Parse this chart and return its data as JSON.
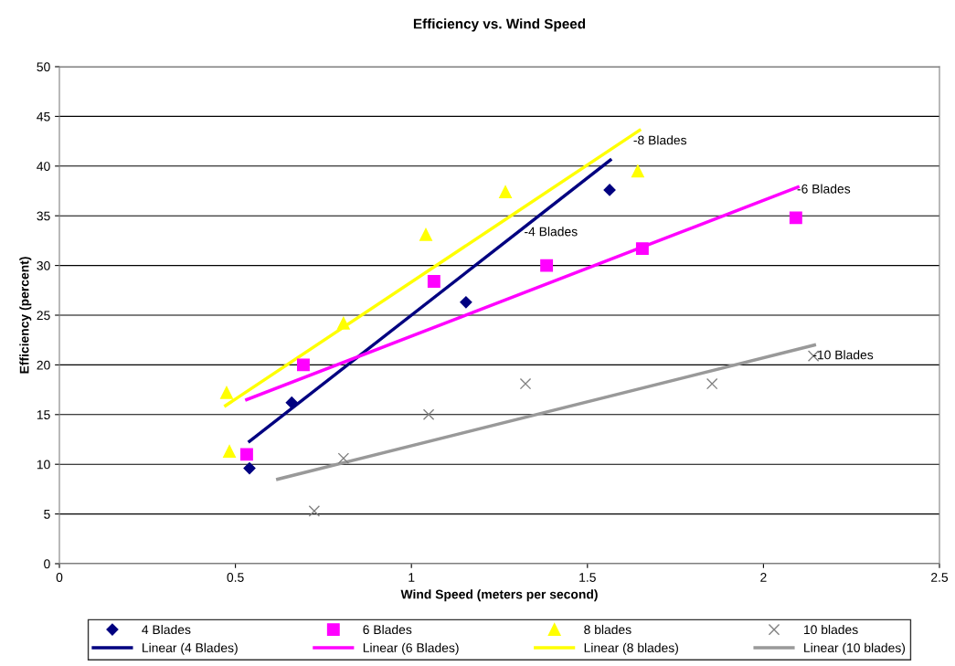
{
  "chart_data": {
    "type": "scatter",
    "title": "Efficiency vs. Wind Speed",
    "xlabel": "Wind Speed (meters per second)",
    "ylabel": "Efficiency (percent)",
    "xlim": [
      0,
      2.5
    ],
    "xticks": [
      0,
      0.5,
      1,
      1.5,
      2,
      2.5
    ],
    "ylim": [
      0,
      50
    ],
    "yticks": [
      0,
      5,
      10,
      15,
      20,
      25,
      30,
      35,
      40,
      45,
      50
    ],
    "grid": "y",
    "legend": "bottom",
    "series": [
      {
        "name": "4 Blades",
        "marker": "diamond",
        "color": "#000080",
        "x": [
          0.54,
          0.66,
          1.155,
          1.563
        ],
        "values": [
          9.6,
          16.2,
          26.3,
          37.6
        ]
      },
      {
        "name": "6 Blades",
        "marker": "square",
        "color": "#ff00ff",
        "x": [
          0.532,
          0.693,
          1.064,
          1.384,
          1.656,
          2.092
        ],
        "values": [
          11.0,
          20.0,
          28.4,
          30.0,
          31.7,
          34.8
        ]
      },
      {
        "name": "8 blades",
        "marker": "triangle",
        "color": "#ffff00",
        "x": [
          0.475,
          0.483,
          0.807,
          1.041,
          1.267,
          1.643
        ],
        "values": [
          17.2,
          11.3,
          24.2,
          33.1,
          37.4,
          39.5
        ]
      },
      {
        "name": "10 blades",
        "marker": "cross",
        "color": "#808080",
        "x": [
          0.724,
          0.807,
          1.049,
          1.324,
          1.854,
          2.142
        ],
        "values": [
          5.3,
          10.6,
          15.0,
          18.1,
          18.1,
          20.9
        ]
      },
      {
        "name": "Linear (4 Blades)",
        "type": "line",
        "color": "#000080",
        "x": [
          0.54,
          1.565
        ],
        "values": [
          12.3,
          40.6
        ]
      },
      {
        "name": "Linear (6 Blades)",
        "type": "line",
        "color": "#ff00ff",
        "x": [
          0.532,
          2.098
        ],
        "values": [
          16.5,
          37.9
        ]
      },
      {
        "name": "Linear (8 blades)",
        "type": "line",
        "color": "#ffff00",
        "x": [
          0.472,
          1.648
        ],
        "values": [
          15.9,
          43.6
        ]
      },
      {
        "name": "Linear (10 blades)",
        "type": "line",
        "color": "#999999",
        "x": [
          0.62,
          2.145
        ],
        "values": [
          8.5,
          22.0
        ]
      }
    ],
    "annotations": [
      {
        "text": "-4 Blades",
        "x": 1.32,
        "y": 33.3
      },
      {
        "text": "-8 Blades",
        "x": 1.63,
        "y": 42.5
      },
      {
        "text": "-6 Blades",
        "x": 2.095,
        "y": 37.6
      },
      {
        "text": "-10 Blades",
        "x": 2.14,
        "y": 20.9
      }
    ]
  }
}
